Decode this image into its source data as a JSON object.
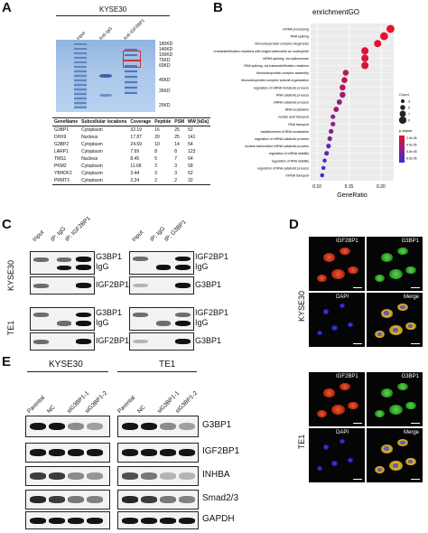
{
  "panels": {
    "A": "A",
    "B": "B",
    "C": "C",
    "D": "D",
    "E": "E"
  },
  "panelA": {
    "title": "KYSE30",
    "lanes": [
      "Input",
      "Anti-IgG",
      "Anti-IGF2BP1"
    ],
    "markers": [
      "180KD",
      "140KD",
      "100KD",
      "75KD",
      "60KD",
      "45KD",
      "35KD",
      "25KD"
    ],
    "table": {
      "headers": [
        "GeneName",
        "Subcellular locations",
        "Coverage",
        "Peptide",
        "PSM",
        "MW [kDa]"
      ],
      "rows": [
        [
          "G3BP1",
          "Cytoplasm",
          "32.19",
          "16",
          "25",
          "52"
        ],
        [
          "DHX9",
          "Nucleus",
          "17.87",
          "20",
          "25",
          "141"
        ],
        [
          "G3BP2",
          "Cytoplasm",
          "24.69",
          "10",
          "14",
          "54"
        ],
        [
          "LARP1",
          "Cytoplasm",
          "7.69",
          "8",
          "8",
          "123"
        ],
        [
          "TMS1",
          "Nucleus",
          "8.45",
          "5",
          "7",
          "64"
        ],
        [
          "PKM2",
          "Cytoplasm",
          "11.68",
          "3",
          "3",
          "58"
        ],
        [
          "YBHDF2",
          "Cytoplasm",
          "3.44",
          "3",
          "3",
          "62"
        ],
        [
          "PRMT3",
          "Cytoplasm",
          "3.24",
          "2",
          "2",
          "32"
        ]
      ]
    }
  },
  "chart_data": {
    "type": "scatter",
    "title": "enrichmentGO",
    "xlabel": "GeneRatio",
    "ylabel": "",
    "xlim": [
      0.09,
      0.22
    ],
    "xticks": [
      0.1,
      0.15,
      0.2
    ],
    "xtick_labels": [
      "0.10",
      "0.15",
      "0.20"
    ],
    "terms": [
      {
        "term": "mRNA processing",
        "x": 0.215,
        "count": 9,
        "p": 1e-06
      },
      {
        "term": "RNA splicing",
        "x": 0.205,
        "count": 9,
        "p": 2e-06
      },
      {
        "term": "ribonucleoprotein complex biogenesis",
        "x": 0.195,
        "count": 8,
        "p": 5e-06
      },
      {
        "term": "RNA splicing, via transesterification reactions with bulged adenosine as nucleophile",
        "x": 0.175,
        "count": 8,
        "p": 8e-06
      },
      {
        "term": "mRNA splicing, via spliceosome",
        "x": 0.175,
        "count": 8,
        "p": 8e-06
      },
      {
        "term": "RNA splicing, via transesterification reactions",
        "x": 0.175,
        "count": 8,
        "p": 9e-06
      },
      {
        "term": "ribonucleoprotein complex assembly",
        "x": 0.145,
        "count": 6,
        "p": 2e-05
      },
      {
        "term": "ribonucleoprotein complex subunit organization",
        "x": 0.143,
        "count": 6,
        "p": 2e-05
      },
      {
        "term": "regulation of mRNA metabolic process",
        "x": 0.14,
        "count": 6,
        "p": 2.5e-05
      },
      {
        "term": "RNA catabolic process",
        "x": 0.14,
        "count": 6,
        "p": 3e-05
      },
      {
        "term": "mRNA catabolic process",
        "x": 0.135,
        "count": 5,
        "p": 4e-05
      },
      {
        "term": "RNA localization",
        "x": 0.13,
        "count": 5,
        "p": 3.5e-05
      },
      {
        "term": "nucleic acid transport",
        "x": 0.125,
        "count": 4,
        "p": 4.5e-05
      },
      {
        "term": "RNA transport",
        "x": 0.125,
        "count": 4,
        "p": 4.5e-05
      },
      {
        "term": "establishment of RNA localization",
        "x": 0.122,
        "count": 4,
        "p": 4.5e-05
      },
      {
        "term": "regulation of mRNA catabolic process",
        "x": 0.12,
        "count": 4,
        "p": 5e-05
      },
      {
        "term": "nuclear-transcribed mRNA catabolic process",
        "x": 0.118,
        "count": 4,
        "p": 6e-05
      },
      {
        "term": "regulation of mRNA stability",
        "x": 0.115,
        "count": 4,
        "p": 6e-05
      },
      {
        "term": "regulation of RNA stability",
        "x": 0.112,
        "count": 3,
        "p": 7e-05
      },
      {
        "term": "regulation of RNA catabolic process",
        "x": 0.11,
        "count": 3,
        "p": 7e-05
      },
      {
        "term": "mRNA transport",
        "x": 0.108,
        "count": 3,
        "p": 8e-05
      }
    ],
    "legend": {
      "count_title": "Count",
      "count_values": [
        "3",
        "4",
        "5",
        "6",
        "7",
        "8",
        "9"
      ],
      "p_title": "p.adjust",
      "p_labels": [
        "2.0e-05",
        "4.0e-05",
        "6.0e-05",
        "8.0e-05"
      ],
      "color_high": "#e8102b",
      "color_low": "#3b2bd8"
    }
  },
  "panelC": {
    "kyse_label": "KYSE30",
    "te_label": "TE1",
    "left_lanes": [
      "Input",
      "IP: IgG",
      "IP: IGF2BP1"
    ],
    "right_lanes": [
      "Input",
      "IP: IgG",
      "IP: G3BP1"
    ],
    "left_rows": [
      [
        "G3BP1",
        "IgG"
      ],
      [
        "IGF2BP1"
      ],
      [
        "G3BP1",
        "IgG"
      ],
      [
        "IGF2BP1"
      ]
    ],
    "right_rows": [
      [
        "IGF2BP1",
        "IgG"
      ],
      [
        "G3BP1"
      ],
      [
        "IGF2BP1",
        "IgG"
      ],
      [
        "G3BP1"
      ]
    ]
  },
  "panelD": {
    "kyse_label": "KYSE30",
    "te_label": "TE1",
    "channels": [
      "IGF2BP1",
      "G3BP1",
      "DAPI",
      "Merge"
    ]
  },
  "panelE": {
    "kyse_label": "KYSE30",
    "te_label": "TE1",
    "lanes": [
      "Parental",
      "NC",
      "siG3BP1-1",
      "siG3BP1-2"
    ],
    "rows": [
      "G3BP1",
      "IGF2BP1",
      "INHBA",
      "Smad2/3",
      "GAPDH"
    ]
  }
}
